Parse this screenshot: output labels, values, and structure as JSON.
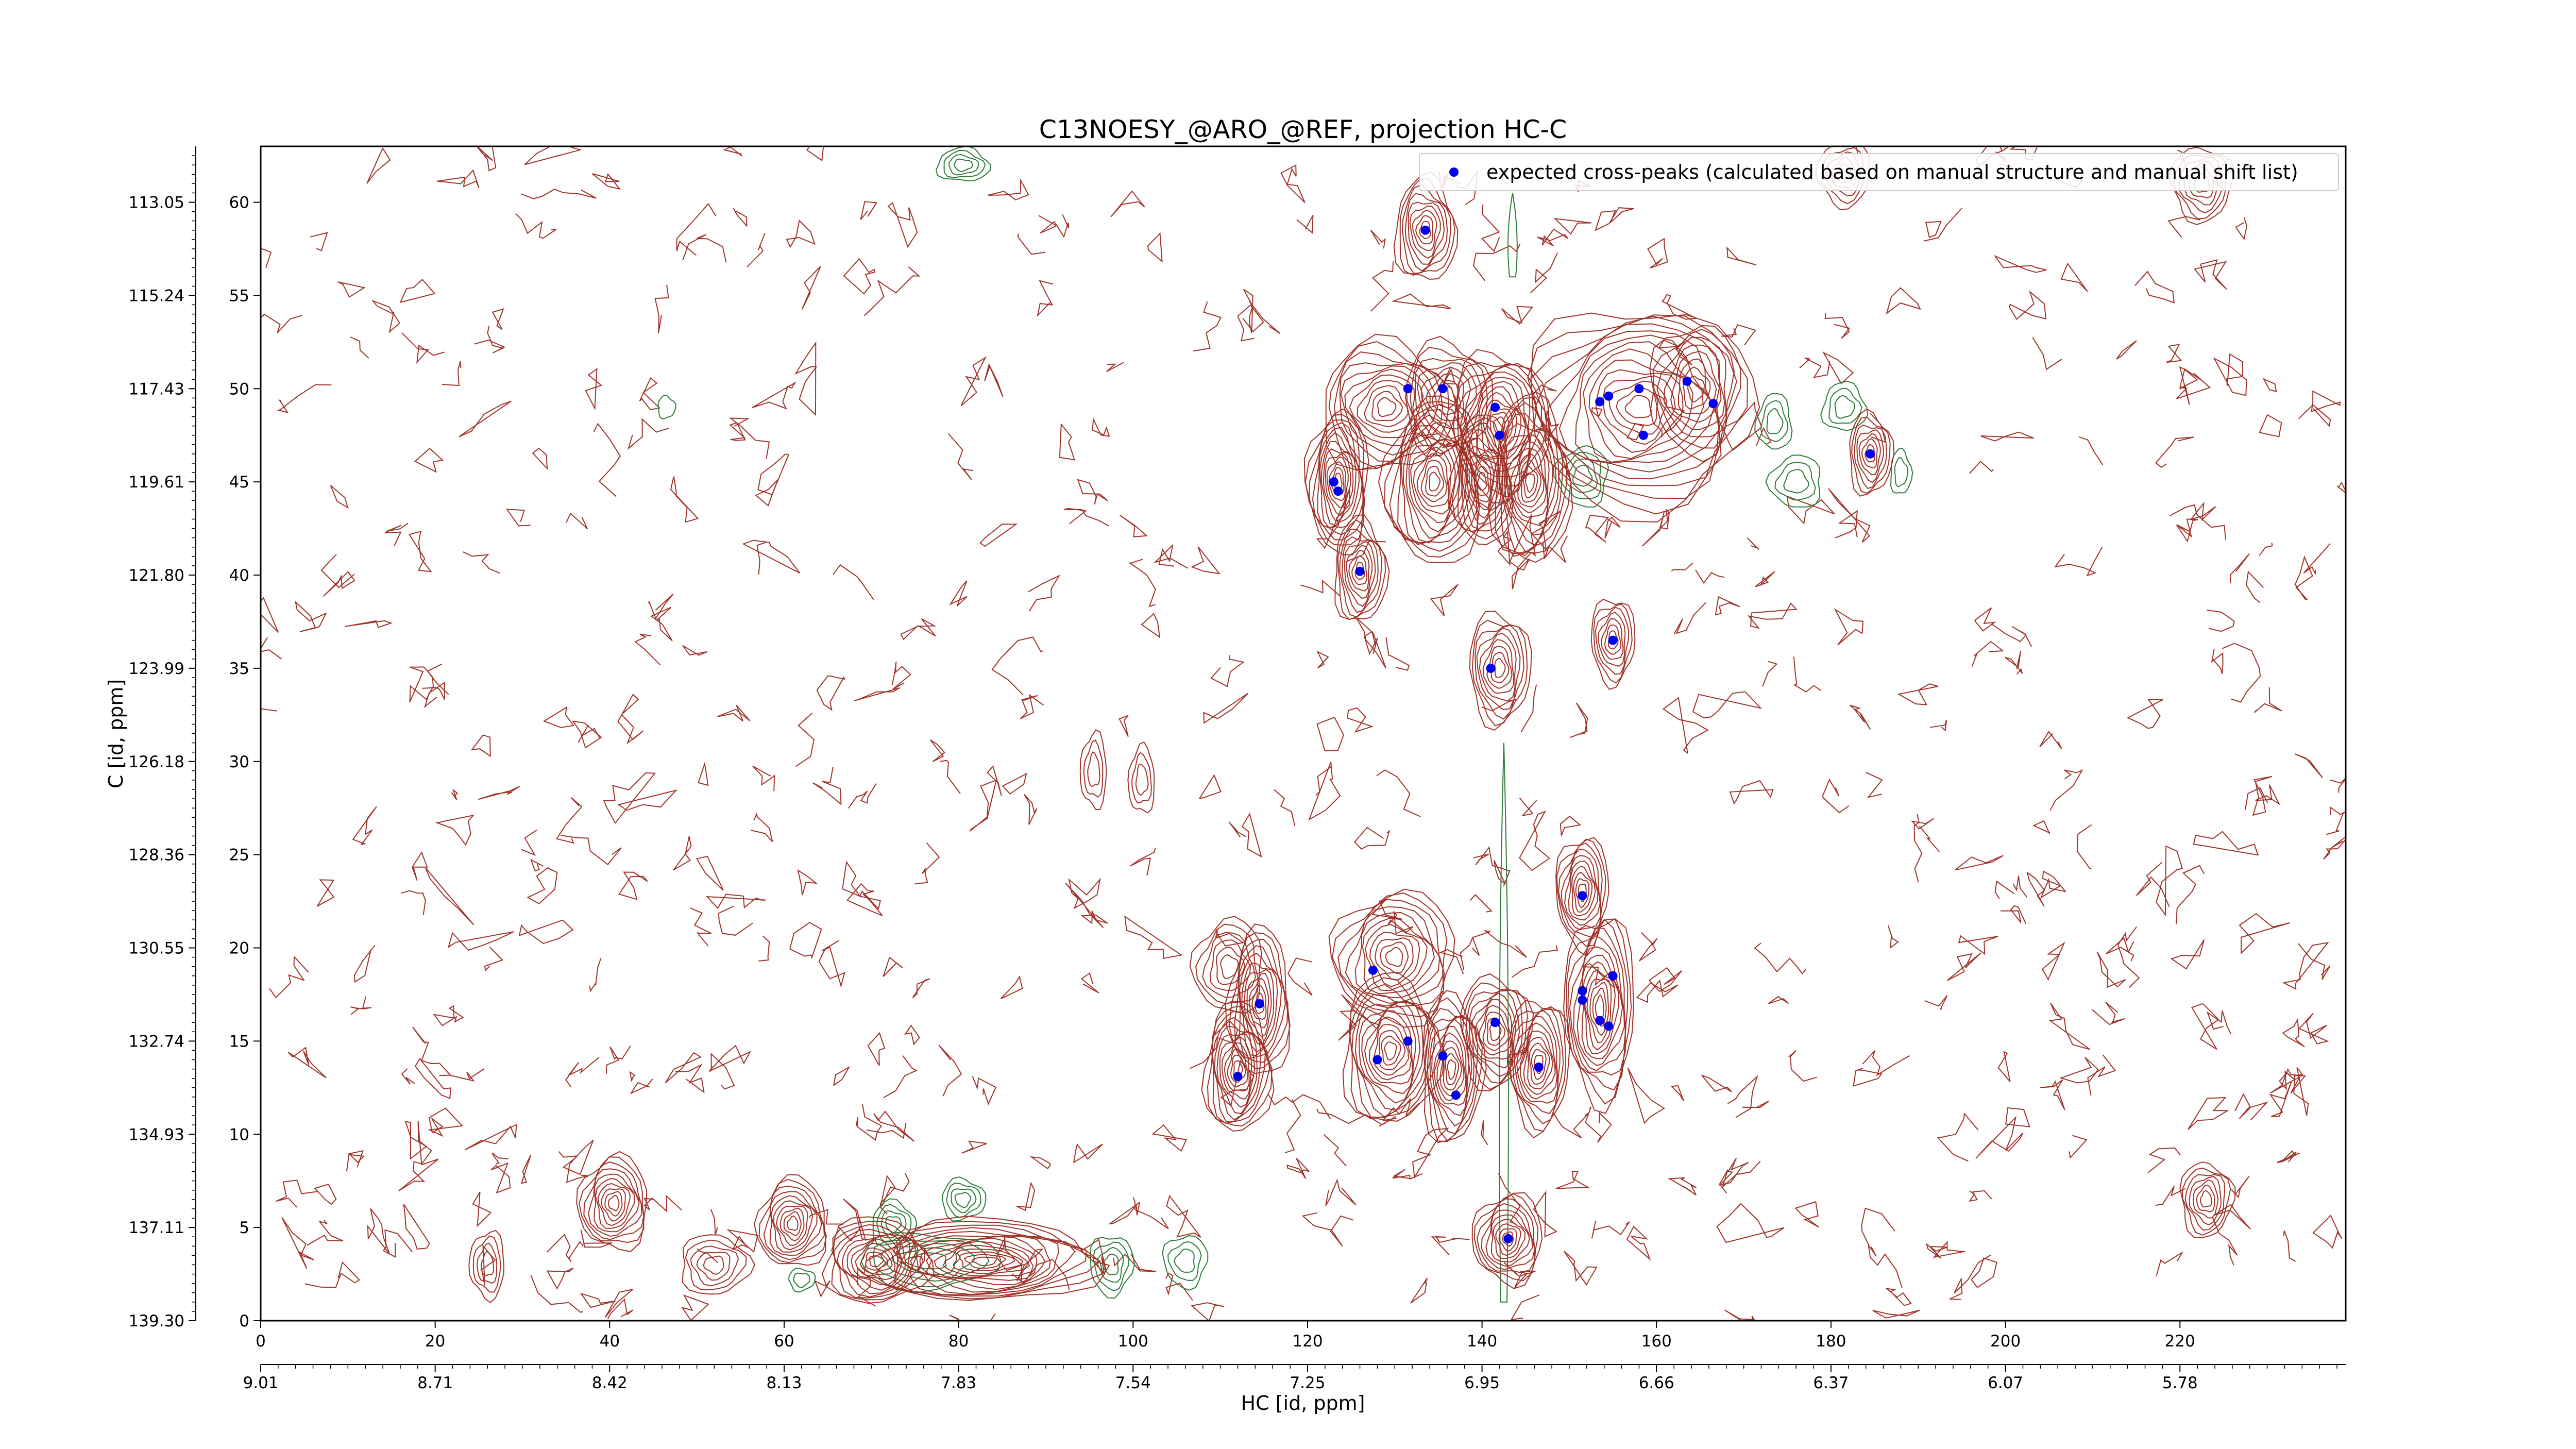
{
  "chart_data": {
    "type": "contour",
    "title": "C13NOESY_@ARO_@REF, projection HC-C",
    "xlabel": "HC [id, ppm]",
    "ylabel": "C [id, ppm]",
    "x_index_range": [
      0,
      239
    ],
    "y_index_range": [
      0,
      63
    ],
    "x_index_ticks": [
      "0",
      "20",
      "40",
      "60",
      "80",
      "100",
      "120",
      "140",
      "160",
      "180",
      "200",
      "220"
    ],
    "y_index_ticks": [
      "0",
      "5",
      "10",
      "15",
      "20",
      "25",
      "30",
      "35",
      "40",
      "45",
      "50",
      "55",
      "60"
    ],
    "x_ppm_ticks": [
      "9.01",
      "8.71",
      "8.42",
      "8.13",
      "7.83",
      "7.54",
      "7.25",
      "6.95",
      "6.66",
      "6.37",
      "6.07",
      "5.78"
    ],
    "y_ppm_ticks": [
      "139.30",
      "137.11",
      "134.93",
      "132.74",
      "130.55",
      "128.36",
      "126.18",
      "123.99",
      "121.80",
      "119.61",
      "117.43",
      "115.24",
      "113.05"
    ],
    "legend": {
      "label": "expected cross-peaks (calculated based on manual structure and manual shift list)",
      "position": "top-right"
    },
    "colors": {
      "positive": "#a0342a",
      "negative": "#2e7d3a",
      "peak": "#0000ee",
      "frame": "#000000"
    },
    "peaks": [
      {
        "x": 133.5,
        "y": 58.5
      },
      {
        "x": 131.5,
        "y": 50.0
      },
      {
        "x": 135.5,
        "y": 50.0
      },
      {
        "x": 141.5,
        "y": 49.0
      },
      {
        "x": 142.0,
        "y": 47.5
      },
      {
        "x": 153.5,
        "y": 49.3
      },
      {
        "x": 154.5,
        "y": 49.6
      },
      {
        "x": 158.0,
        "y": 50.0
      },
      {
        "x": 158.5,
        "y": 47.5
      },
      {
        "x": 163.5,
        "y": 50.4
      },
      {
        "x": 166.5,
        "y": 49.2
      },
      {
        "x": 123.0,
        "y": 45.0
      },
      {
        "x": 123.5,
        "y": 44.5
      },
      {
        "x": 126.0,
        "y": 40.2
      },
      {
        "x": 184.5,
        "y": 46.5
      },
      {
        "x": 141.0,
        "y": 35.0
      },
      {
        "x": 155.0,
        "y": 36.5
      },
      {
        "x": 151.5,
        "y": 22.8
      },
      {
        "x": 155.0,
        "y": 18.5
      },
      {
        "x": 127.5,
        "y": 18.8
      },
      {
        "x": 114.5,
        "y": 17.0
      },
      {
        "x": 151.5,
        "y": 17.7
      },
      {
        "x": 151.5,
        "y": 17.2
      },
      {
        "x": 153.5,
        "y": 16.1
      },
      {
        "x": 154.5,
        "y": 15.8
      },
      {
        "x": 141.5,
        "y": 16.0
      },
      {
        "x": 131.5,
        "y": 15.0
      },
      {
        "x": 128.0,
        "y": 14.0
      },
      {
        "x": 135.5,
        "y": 14.2
      },
      {
        "x": 146.5,
        "y": 13.6
      },
      {
        "x": 112.0,
        "y": 13.1
      },
      {
        "x": 137.0,
        "y": 12.1
      },
      {
        "x": 143.0,
        "y": 4.4
      }
    ],
    "positive_blobs": [
      {
        "cx": 133.5,
        "cy": 58.5,
        "rx": 3.5,
        "ry": 2.8,
        "levels": 9
      },
      {
        "cx": 129.0,
        "cy": 49.0,
        "rx": 7.5,
        "ry": 3.5,
        "levels": 11
      },
      {
        "cx": 136.0,
        "cy": 49.5,
        "rx": 5.0,
        "ry": 3.0,
        "levels": 8
      },
      {
        "cx": 142.0,
        "cy": 48.0,
        "rx": 5.5,
        "ry": 4.0,
        "levels": 13
      },
      {
        "cx": 158.0,
        "cy": 49.0,
        "rx": 13.0,
        "ry": 5.5,
        "levels": 14
      },
      {
        "cx": 164.5,
        "cy": 50.0,
        "rx": 5.0,
        "ry": 3.5,
        "levels": 8
      },
      {
        "cx": 123.5,
        "cy": 45.0,
        "rx": 3.5,
        "ry": 3.8,
        "levels": 13
      },
      {
        "cx": 134.5,
        "cy": 45.0,
        "rx": 5.5,
        "ry": 4.5,
        "levels": 14
      },
      {
        "cx": 140.0,
        "cy": 45.0,
        "rx": 3.5,
        "ry": 3.5,
        "levels": 11
      },
      {
        "cx": 145.5,
        "cy": 45.0,
        "rx": 4.5,
        "ry": 4.5,
        "levels": 14
      },
      {
        "cx": 126.0,
        "cy": 40.2,
        "rx": 3.0,
        "ry": 2.8,
        "levels": 9
      },
      {
        "cx": 184.5,
        "cy": 46.5,
        "rx": 2.5,
        "ry": 2.2,
        "levels": 7
      },
      {
        "cx": 142.0,
        "cy": 35.0,
        "rx": 3.5,
        "ry": 3.0,
        "levels": 9
      },
      {
        "cx": 155.0,
        "cy": 36.5,
        "rx": 2.5,
        "ry": 2.3,
        "levels": 7
      },
      {
        "cx": 151.5,
        "cy": 23.0,
        "rx": 3.0,
        "ry": 3.0,
        "levels": 10
      },
      {
        "cx": 130.0,
        "cy": 19.5,
        "rx": 7.0,
        "ry": 3.5,
        "levels": 11
      },
      {
        "cx": 111.0,
        "cy": 19.0,
        "rx": 4.0,
        "ry": 2.5,
        "levels": 6
      },
      {
        "cx": 114.5,
        "cy": 17.0,
        "rx": 3.5,
        "ry": 4.0,
        "levels": 11
      },
      {
        "cx": 112.0,
        "cy": 13.5,
        "rx": 3.8,
        "ry": 3.5,
        "levels": 12
      },
      {
        "cx": 129.5,
        "cy": 14.5,
        "rx": 5.5,
        "ry": 4.0,
        "levels": 13
      },
      {
        "cx": 136.5,
        "cy": 13.5,
        "rx": 3.5,
        "ry": 4.0,
        "levels": 12
      },
      {
        "cx": 141.5,
        "cy": 15.5,
        "rx": 4.0,
        "ry": 3.0,
        "levels": 10
      },
      {
        "cx": 146.5,
        "cy": 13.8,
        "rx": 3.5,
        "ry": 3.5,
        "levels": 11
      },
      {
        "cx": 153.5,
        "cy": 16.8,
        "rx": 4.0,
        "ry": 5.0,
        "levels": 13
      },
      {
        "cx": 143.0,
        "cy": 4.4,
        "rx": 4.0,
        "ry": 2.4,
        "levels": 10
      },
      {
        "cx": 40.5,
        "cy": 6.3,
        "rx": 4.0,
        "ry": 2.5,
        "levels": 10
      },
      {
        "cx": 61.0,
        "cy": 5.2,
        "rx": 4.0,
        "ry": 2.4,
        "levels": 10
      },
      {
        "cx": 83.0,
        "cy": 3.2,
        "rx": 13.0,
        "ry": 2.2,
        "levels": 15
      },
      {
        "cx": 70.5,
        "cy": 3.2,
        "rx": 6.0,
        "ry": 2.3,
        "levels": 12
      },
      {
        "cx": 52.0,
        "cy": 3.0,
        "rx": 4.0,
        "ry": 1.6,
        "levels": 5
      },
      {
        "cx": 223.0,
        "cy": 6.5,
        "rx": 3.0,
        "ry": 2.0,
        "levels": 7
      },
      {
        "cx": 222.5,
        "cy": 61.0,
        "rx": 3.5,
        "ry": 2.0,
        "levels": 6
      },
      {
        "cx": 181.5,
        "cy": 61.5,
        "rx": 3.0,
        "ry": 1.7,
        "levels": 5
      },
      {
        "cx": 26.0,
        "cy": 3.0,
        "rx": 2.0,
        "ry": 1.8,
        "levels": 4
      },
      {
        "cx": 95.5,
        "cy": 29.5,
        "rx": 1.5,
        "ry": 2.0,
        "levels": 3
      },
      {
        "cx": 101.0,
        "cy": 29.0,
        "rx": 1.5,
        "ry": 1.8,
        "levels": 3
      }
    ],
    "negative_blobs": [
      {
        "cx": 80.5,
        "cy": 62.0,
        "rx": 3.0,
        "ry": 0.9,
        "levels": 4
      },
      {
        "cx": 72.5,
        "cy": 5.2,
        "rx": 2.5,
        "ry": 1.2,
        "levels": 4
      },
      {
        "cx": 80.5,
        "cy": 6.5,
        "rx": 2.5,
        "ry": 1.1,
        "levels": 4
      },
      {
        "cx": 76.5,
        "cy": 3.2,
        "rx": 8.0,
        "ry": 1.5,
        "levels": 5
      },
      {
        "cx": 97.5,
        "cy": 3.0,
        "rx": 2.5,
        "ry": 1.6,
        "levels": 4
      },
      {
        "cx": 106.0,
        "cy": 3.2,
        "rx": 2.5,
        "ry": 1.4,
        "levels": 3
      },
      {
        "cx": 151.5,
        "cy": 45.3,
        "rx": 3.0,
        "ry": 1.6,
        "levels": 4
      },
      {
        "cx": 176.0,
        "cy": 45.0,
        "rx": 3.0,
        "ry": 1.4,
        "levels": 3
      },
      {
        "cx": 173.5,
        "cy": 48.2,
        "rx": 2.0,
        "ry": 1.5,
        "levels": 3
      },
      {
        "cx": 181.5,
        "cy": 49.0,
        "rx": 2.5,
        "ry": 1.3,
        "levels": 3
      },
      {
        "cx": 188.0,
        "cy": 45.5,
        "rx": 1.2,
        "ry": 1.2,
        "levels": 2
      },
      {
        "cx": 46.5,
        "cy": 49.0,
        "rx": 1.0,
        "ry": 0.6,
        "levels": 1
      },
      {
        "cx": 62.0,
        "cy": 2.2,
        "rx": 1.5,
        "ry": 0.6,
        "levels": 2
      }
    ],
    "negative_ridges": [
      {
        "x": 142.5,
        "y_from": 1.0,
        "y_to": 31.0
      },
      {
        "x": 143.5,
        "y_from": 56.0,
        "y_to": 60.5
      }
    ]
  }
}
